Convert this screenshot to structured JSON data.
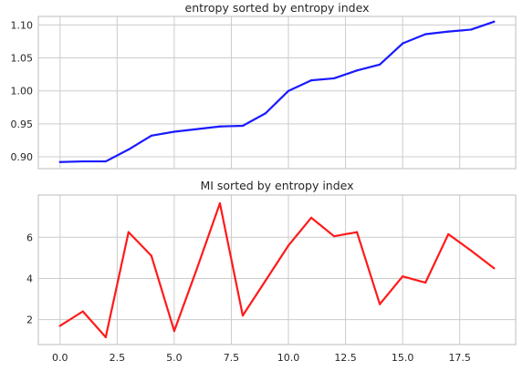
{
  "chart_data": [
    {
      "type": "line",
      "title": "entropy sorted by entropy index",
      "xlabel": "",
      "ylabel": "",
      "grid": true,
      "legend": "none",
      "xlim": [
        -0.95,
        19.95
      ],
      "ylim": [
        0.882,
        1.113
      ],
      "yticks": [
        0.9,
        0.95,
        1.0,
        1.05,
        1.1
      ],
      "ytick_labels": [
        "0.90",
        "0.95",
        "1.00",
        "1.05",
        "1.10"
      ],
      "xticks": [
        0,
        2.5,
        5,
        7.5,
        10,
        12.5,
        15,
        17.5
      ],
      "show_xtick_labels": false,
      "series": [
        {
          "color": "#1a1aff",
          "x": [
            0,
            1,
            2,
            3,
            4,
            5,
            6,
            7,
            8,
            9,
            10,
            11,
            12,
            13,
            14,
            15,
            16,
            17,
            18,
            19
          ],
          "y": [
            0.892,
            0.893,
            0.893,
            0.911,
            0.932,
            0.938,
            0.942,
            0.946,
            0.947,
            0.966,
            1.0,
            1.016,
            1.019,
            1.031,
            1.04,
            1.072,
            1.086,
            1.09,
            1.093,
            1.105
          ]
        }
      ]
    },
    {
      "type": "line",
      "title": "MI sorted by entropy index",
      "xlabel": "",
      "ylabel": "",
      "grid": true,
      "legend": "none",
      "xlim": [
        -0.95,
        19.95
      ],
      "ylim": [
        0.79,
        8.05
      ],
      "yticks": [
        2,
        4,
        6
      ],
      "ytick_labels": [
        "2",
        "4",
        "6"
      ],
      "xticks": [
        0,
        2.5,
        5,
        7.5,
        10,
        12.5,
        15,
        17.5
      ],
      "xtick_labels": [
        "0.0",
        "2.5",
        "5.0",
        "7.5",
        "10.0",
        "12.5",
        "15.0",
        "17.5"
      ],
      "series": [
        {
          "color": "#ff1a1a",
          "x": [
            0,
            1,
            2,
            3,
            4,
            5,
            6,
            7,
            8,
            9,
            10,
            11,
            12,
            13,
            14,
            15,
            16,
            17,
            18,
            19
          ],
          "y": [
            1.7,
            2.4,
            1.15,
            6.25,
            5.1,
            1.45,
            4.5,
            7.65,
            2.2,
            3.9,
            5.6,
            6.95,
            6.05,
            6.25,
            2.75,
            4.1,
            3.8,
            6.15,
            5.35,
            4.5
          ]
        }
      ]
    }
  ]
}
